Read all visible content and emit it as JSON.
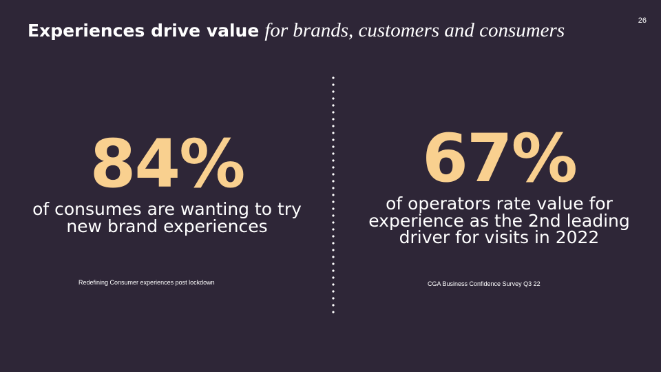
{
  "slide": {
    "page_number": "26",
    "title": {
      "bold": "Experiences drive value",
      "italic": "for brands, customers and consumers"
    },
    "colors": {
      "background": "#2e2637",
      "accent": "#f9d08f",
      "text": "#ffffff"
    },
    "stats": [
      {
        "value": "84%",
        "caption": "of consumes are wanting to try new brand experiences",
        "source": "Redefining Consumer experiences post lockdown"
      },
      {
        "value": "67%",
        "caption": "of operators rate value for experience as the 2nd leading driver for visits in 2022",
        "source": "CGA Business Confidence Survey Q3 22"
      }
    ]
  }
}
